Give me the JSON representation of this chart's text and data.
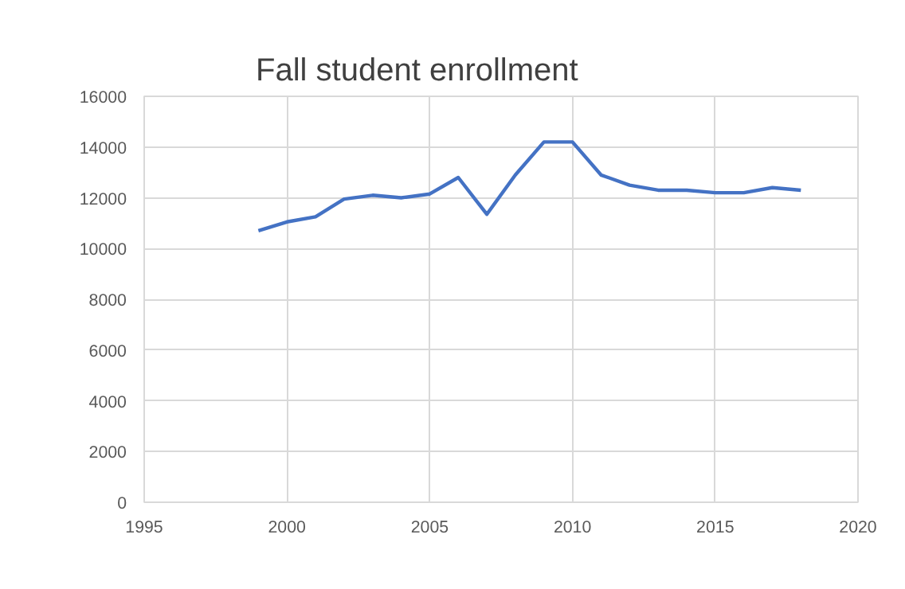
{
  "chart_data": {
    "type": "line",
    "title": "Fall student enrollment",
    "x": [
      1999,
      2000,
      2001,
      2002,
      2003,
      2004,
      2005,
      2006,
      2007,
      2008,
      2009,
      2010,
      2011,
      2012,
      2013,
      2014,
      2015,
      2016,
      2017,
      2018
    ],
    "series": [
      {
        "color": "#4472c4",
        "values": [
          10700,
          11050,
          11250,
          11950,
          12100,
          12000,
          12150,
          12800,
          11350,
          12900,
          14200,
          14200,
          12900,
          12500,
          12300,
          12300,
          12200,
          12200,
          12400,
          12300
        ]
      }
    ],
    "xlim": [
      1995,
      2020
    ],
    "xticks": [
      1995,
      2000,
      2005,
      2010,
      2015,
      2020
    ],
    "ylim": [
      0,
      16000
    ],
    "yticks": [
      0,
      2000,
      4000,
      6000,
      8000,
      10000,
      12000,
      14000,
      16000
    ],
    "grid": true,
    "marker": "none",
    "line_style": "solid"
  }
}
